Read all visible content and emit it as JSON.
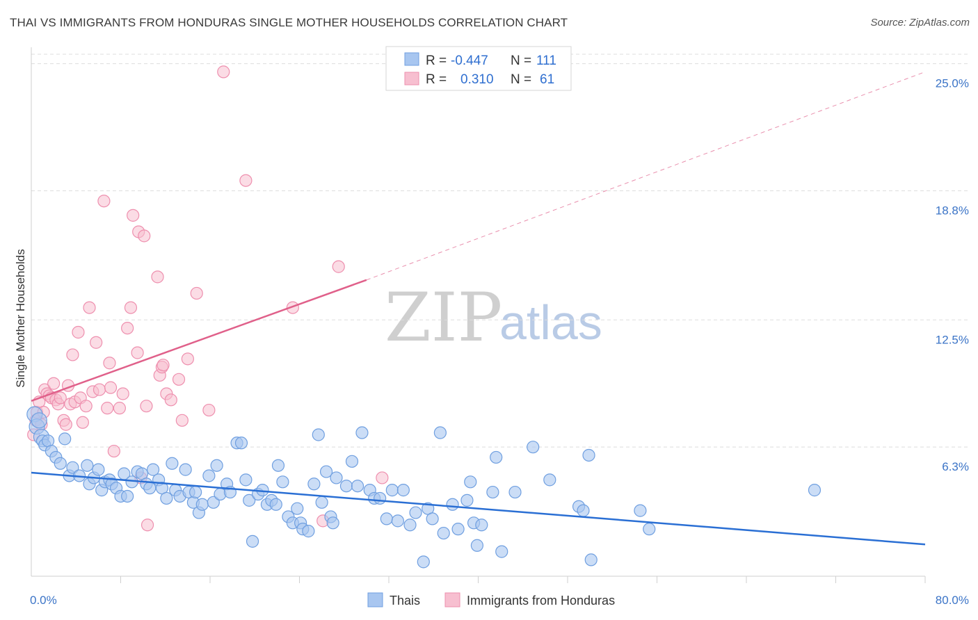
{
  "header": {
    "title": "THAI VS IMMIGRANTS FROM HONDURAS SINGLE MOTHER HOUSEHOLDS CORRELATION CHART",
    "source": "Source: ZipAtlas.com"
  },
  "watermark": {
    "zip": "ZIP",
    "atlas": "atlas"
  },
  "colors": {
    "thai_fill": "#a8c6f0",
    "thai_stroke": "#6f9fe0",
    "thai_line": "#2a6fd4",
    "hond_fill": "#f7bfd0",
    "hond_stroke": "#ee8fae",
    "hond_line": "#e0608a",
    "grid": "#dddddd",
    "axis_label": "#3b74c7"
  },
  "legend": {
    "rows": [
      {
        "r_label": "R =",
        "r_value": "-0.447",
        "n_label": "N =",
        "n_value": "111"
      },
      {
        "r_label": "R =",
        "r_value": "0.310",
        "n_label": "N =",
        "n_value": "61"
      }
    ]
  },
  "bottom_legend": {
    "thai": "Thais",
    "hond": "Immigrants from Honduras"
  },
  "chart_data": {
    "type": "scatter",
    "title": "THAI VS IMMIGRANTS FROM HONDURAS SINGLE MOTHER HOUSEHOLDS CORRELATION CHART",
    "xlabel": "",
    "ylabel": "Single Mother Households",
    "xlim": [
      0,
      80
    ],
    "ylim": [
      0,
      25.8
    ],
    "x_tick_labels": [
      "0.0%",
      "80.0%"
    ],
    "y_ticks": [
      6.3,
      12.5,
      18.8,
      25.0
    ],
    "y_tick_labels": [
      "6.3%",
      "12.5%",
      "18.8%",
      "25.0%"
    ],
    "grid": "horizontal dashed",
    "legend_position": "top-center",
    "series": [
      {
        "name": "Thais",
        "r": -0.447,
        "n": 111,
        "trend": {
          "x0": 0,
          "y0": 5.05,
          "x1": 80,
          "y1": 1.55
        },
        "points": [
          [
            0.3,
            7.9
          ],
          [
            0.5,
            7.3
          ],
          [
            0.7,
            7.6
          ],
          [
            0.9,
            6.8
          ],
          [
            1.0,
            6.6
          ],
          [
            1.2,
            6.4
          ],
          [
            1.5,
            6.6
          ],
          [
            1.8,
            6.1
          ],
          [
            2.2,
            5.8
          ],
          [
            2.6,
            5.5
          ],
          [
            3.0,
            6.7
          ],
          [
            3.4,
            4.9
          ],
          [
            3.7,
            5.3
          ],
          [
            4.3,
            4.9
          ],
          [
            5.0,
            5.4
          ],
          [
            5.2,
            4.5
          ],
          [
            5.6,
            4.8
          ],
          [
            6.0,
            5.2
          ],
          [
            6.3,
            4.2
          ],
          [
            6.6,
            4.6
          ],
          [
            7.0,
            4.7
          ],
          [
            7.2,
            4.5
          ],
          [
            7.6,
            4.3
          ],
          [
            8.0,
            3.9
          ],
          [
            8.3,
            5.0
          ],
          [
            8.6,
            3.9
          ],
          [
            9.0,
            4.6
          ],
          [
            9.5,
            5.1
          ],
          [
            9.9,
            5.0
          ],
          [
            10.3,
            4.5
          ],
          [
            10.6,
            4.3
          ],
          [
            10.9,
            5.2
          ],
          [
            11.4,
            4.7
          ],
          [
            11.7,
            4.3
          ],
          [
            12.1,
            3.8
          ],
          [
            12.6,
            5.5
          ],
          [
            12.9,
            4.2
          ],
          [
            13.3,
            3.9
          ],
          [
            13.8,
            5.2
          ],
          [
            14.1,
            4.1
          ],
          [
            14.5,
            3.6
          ],
          [
            14.7,
            4.1
          ],
          [
            15.0,
            3.1
          ],
          [
            15.3,
            3.5
          ],
          [
            15.9,
            4.9
          ],
          [
            16.3,
            3.6
          ],
          [
            16.6,
            5.4
          ],
          [
            16.9,
            4.0
          ],
          [
            17.5,
            4.5
          ],
          [
            17.8,
            4.1
          ],
          [
            18.4,
            6.5
          ],
          [
            18.8,
            6.5
          ],
          [
            19.2,
            4.7
          ],
          [
            19.5,
            3.7
          ],
          [
            19.8,
            1.7
          ],
          [
            20.3,
            4.0
          ],
          [
            20.7,
            4.2
          ],
          [
            21.1,
            3.5
          ],
          [
            21.5,
            3.7
          ],
          [
            21.9,
            3.5
          ],
          [
            22.1,
            5.4
          ],
          [
            22.5,
            4.6
          ],
          [
            23.0,
            2.9
          ],
          [
            23.4,
            2.6
          ],
          [
            23.8,
            3.3
          ],
          [
            24.1,
            2.6
          ],
          [
            24.3,
            2.3
          ],
          [
            24.8,
            2.2
          ],
          [
            25.3,
            4.5
          ],
          [
            25.7,
            6.9
          ],
          [
            26.0,
            3.6
          ],
          [
            26.4,
            5.1
          ],
          [
            26.8,
            2.9
          ],
          [
            27.0,
            2.6
          ],
          [
            27.3,
            4.8
          ],
          [
            28.2,
            4.4
          ],
          [
            28.7,
            5.6
          ],
          [
            29.2,
            4.4
          ],
          [
            29.6,
            7.0
          ],
          [
            30.3,
            4.2
          ],
          [
            30.7,
            3.8
          ],
          [
            31.2,
            3.8
          ],
          [
            31.8,
            2.8
          ],
          [
            32.3,
            4.2
          ],
          [
            32.8,
            2.7
          ],
          [
            33.3,
            4.2
          ],
          [
            33.9,
            2.5
          ],
          [
            34.4,
            3.1
          ],
          [
            35.1,
            0.7
          ],
          [
            35.5,
            3.3
          ],
          [
            35.9,
            2.8
          ],
          [
            36.6,
            7.0
          ],
          [
            36.9,
            2.1
          ],
          [
            37.7,
            3.5
          ],
          [
            38.2,
            2.3
          ],
          [
            39.0,
            3.7
          ],
          [
            39.3,
            4.6
          ],
          [
            39.6,
            2.6
          ],
          [
            39.9,
            1.5
          ],
          [
            40.3,
            2.5
          ],
          [
            41.3,
            4.1
          ],
          [
            41.6,
            5.8
          ],
          [
            42.1,
            1.2
          ],
          [
            43.3,
            4.1
          ],
          [
            44.9,
            6.3
          ],
          [
            46.4,
            4.7
          ],
          [
            49.0,
            3.4
          ],
          [
            49.4,
            3.2
          ],
          [
            49.9,
            5.9
          ],
          [
            50.1,
            0.8
          ],
          [
            54.5,
            3.2
          ],
          [
            55.3,
            2.3
          ],
          [
            70.1,
            4.2
          ]
        ]
      },
      {
        "name": "Immigrants from Honduras",
        "r": 0.31,
        "n": 61,
        "trend": {
          "x0": 0,
          "y0": 8.55,
          "x1": 30,
          "y1": 14.45,
          "dashed_to_x": 80,
          "dashed_to_y": 24.6
        },
        "points": [
          [
            0.2,
            6.9
          ],
          [
            0.4,
            7.6
          ],
          [
            0.5,
            8.0
          ],
          [
            0.7,
            8.5
          ],
          [
            0.9,
            7.4
          ],
          [
            1.1,
            8.0
          ],
          [
            1.2,
            9.1
          ],
          [
            1.4,
            8.9
          ],
          [
            1.6,
            8.8
          ],
          [
            1.8,
            8.7
          ],
          [
            2.0,
            9.4
          ],
          [
            2.2,
            8.6
          ],
          [
            2.4,
            8.4
          ],
          [
            2.6,
            8.7
          ],
          [
            2.9,
            7.6
          ],
          [
            3.1,
            7.4
          ],
          [
            3.3,
            9.3
          ],
          [
            3.5,
            8.4
          ],
          [
            3.7,
            10.8
          ],
          [
            3.9,
            8.5
          ],
          [
            4.2,
            11.9
          ],
          [
            4.4,
            8.7
          ],
          [
            4.6,
            7.5
          ],
          [
            4.9,
            8.3
          ],
          [
            5.2,
            13.1
          ],
          [
            5.5,
            9.0
          ],
          [
            5.8,
            11.4
          ],
          [
            6.1,
            9.1
          ],
          [
            6.5,
            18.3
          ],
          [
            6.8,
            8.2
          ],
          [
            7.0,
            10.4
          ],
          [
            7.4,
            6.1
          ],
          [
            7.9,
            8.2
          ],
          [
            8.2,
            8.9
          ],
          [
            8.6,
            12.1
          ],
          [
            8.9,
            13.1
          ],
          [
            9.1,
            17.6
          ],
          [
            9.5,
            10.9
          ],
          [
            9.6,
            16.8
          ],
          [
            10.1,
            16.6
          ],
          [
            10.3,
            8.3
          ],
          [
            10.4,
            2.5
          ],
          [
            11.3,
            14.6
          ],
          [
            11.5,
            9.8
          ],
          [
            11.7,
            10.2
          ],
          [
            11.8,
            10.3
          ],
          [
            12.1,
            8.9
          ],
          [
            13.2,
            9.6
          ],
          [
            13.5,
            7.6
          ],
          [
            14.0,
            10.6
          ],
          [
            14.8,
            13.8
          ],
          [
            15.9,
            8.1
          ],
          [
            17.2,
            24.6
          ],
          [
            19.2,
            19.3
          ],
          [
            23.4,
            13.1
          ],
          [
            26.1,
            2.7
          ],
          [
            27.5,
            15.1
          ],
          [
            31.4,
            4.8
          ],
          [
            7.1,
            9.2
          ],
          [
            9.8,
            4.8
          ],
          [
            12.5,
            8.6
          ]
        ]
      }
    ]
  }
}
